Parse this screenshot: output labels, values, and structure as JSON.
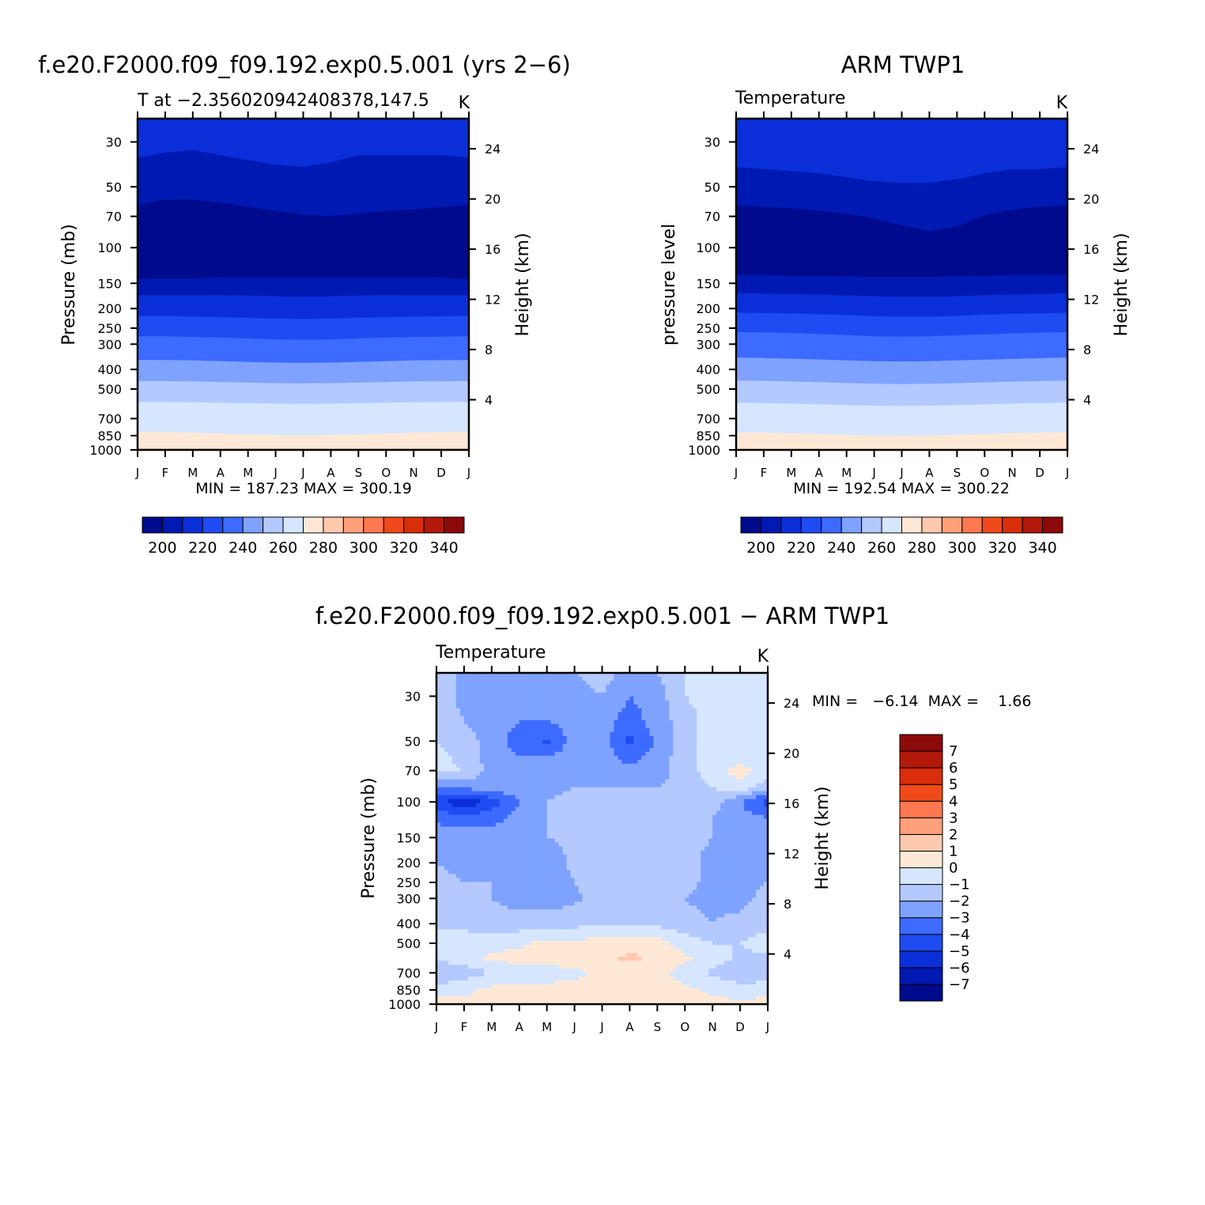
{
  "colors": {
    "abs_palette": [
      "#000a8c",
      "#0019b2",
      "#0a2fd9",
      "#1e4cf2",
      "#3d6bff",
      "#7fa2ff",
      "#b3c9ff",
      "#d6e6ff",
      "#ffe8d6",
      "#ffc9ae",
      "#ffa07a",
      "#ff7850",
      "#f04a1a",
      "#d92e0a",
      "#b2190a",
      "#8c0a0a"
    ],
    "diff_palette": [
      "#000a8c",
      "#0019b2",
      "#0a2fd9",
      "#1e4cf2",
      "#3d6bff",
      "#7fa2ff",
      "#b3c9ff",
      "#d6e6ff",
      "#ffe8d6",
      "#ffc9ae",
      "#ffa07a",
      "#ff7850",
      "#f04a1a",
      "#d92e0a",
      "#b2190a",
      "#8c0a0a"
    ]
  },
  "chart_data": [
    {
      "type": "heatmap",
      "title": "f.e20.F2000.f09_f09.192.exp0.5.001 (yrs 2−6)",
      "subtitle_left": "T at −2.356020942408378,147.5",
      "subtitle_right": "K",
      "xlabel": "",
      "ylabel": "Pressure (mb)",
      "ylabel_right": "Height (km)",
      "x_ticks": [
        "J",
        "F",
        "M",
        "A",
        "M",
        "J",
        "J",
        "A",
        "S",
        "O",
        "N",
        "D",
        "J"
      ],
      "y_ticks": [
        "30",
        "50",
        "70",
        "100",
        "150",
        "200",
        "250",
        "300",
        "400",
        "500",
        "700",
        "850",
        "1000"
      ],
      "y_tick_values": [
        30,
        50,
        70,
        100,
        150,
        200,
        250,
        300,
        400,
        500,
        700,
        850,
        1000
      ],
      "height_ticks": [
        "24",
        "20",
        "16",
        "12",
        "8",
        "4"
      ],
      "height_tick_values": [
        24,
        20,
        16,
        12,
        8,
        4
      ],
      "ylim": [
        1000,
        23
      ],
      "minmax_text": "MIN = 187.23  MAX = 300.19",
      "colorbar_labels": [
        "200",
        "220",
        "240",
        "260",
        "280",
        "300",
        "320",
        "340"
      ],
      "level_boundaries_p": [
        [
          36,
          34,
          33,
          35,
          37,
          39,
          40,
          38,
          35,
          35,
          35,
          35,
          36
        ],
        [
          62,
          58,
          58,
          60,
          63,
          66,
          69,
          70,
          68,
          66,
          65,
          63,
          62
        ],
        [
          143,
          142,
          142,
          141,
          141,
          141,
          141,
          141,
          141,
          141,
          141,
          141,
          143
        ],
        [
          172,
          172,
          172,
          172,
          173,
          174,
          175,
          174,
          173,
          172,
          172,
          172,
          172
        ],
        [
          218,
          218,
          220,
          221,
          223,
          225,
          226,
          225,
          223,
          221,
          220,
          219,
          218
        ],
        [
          275,
          275,
          277,
          279,
          282,
          285,
          286,
          285,
          282,
          279,
          277,
          276,
          275
        ],
        [
          360,
          360,
          362,
          365,
          368,
          371,
          372,
          371,
          368,
          365,
          362,
          361,
          360
        ],
        [
          458,
          458,
          460,
          463,
          466,
          469,
          470,
          469,
          466,
          463,
          460,
          459,
          458
        ],
        [
          580,
          581,
          583,
          586,
          589,
          592,
          593,
          592,
          589,
          586,
          583,
          581,
          580
        ],
        [
          815,
          818,
          825,
          833,
          841,
          847,
          850,
          847,
          841,
          833,
          825,
          818,
          815
        ],
        [
          985,
          985,
          985,
          985,
          985,
          985,
          985,
          985,
          985,
          985,
          985,
          985,
          985
        ]
      ],
      "band_colors_top_down": [
        "#0a2fd9",
        "#0019b2",
        "#000a8c",
        "#0019b2",
        "#0a2fd9",
        "#1e4cf2",
        "#3d6bff",
        "#7fa2ff",
        "#b3c9ff",
        "#d6e6ff",
        "#ffe8d6",
        "#ffc9ae",
        "#ffa07a"
      ]
    },
    {
      "type": "heatmap",
      "title": "ARM TWP1",
      "subtitle_left": "Temperature",
      "subtitle_right": "K",
      "ylabel": "pressure level",
      "ylabel_right": "Height (km)",
      "x_ticks": [
        "J",
        "F",
        "M",
        "A",
        "M",
        "J",
        "J",
        "A",
        "S",
        "O",
        "N",
        "D",
        "J"
      ],
      "y_ticks": [
        "30",
        "50",
        "70",
        "100",
        "150",
        "200",
        "250",
        "300",
        "400",
        "500",
        "700",
        "850",
        "1000"
      ],
      "y_tick_values": [
        30,
        50,
        70,
        100,
        150,
        200,
        250,
        300,
        400,
        500,
        700,
        850,
        1000
      ],
      "height_ticks": [
        "24",
        "20",
        "16",
        "12",
        "8",
        "4"
      ],
      "height_tick_values": [
        24,
        20,
        16,
        12,
        8,
        4
      ],
      "ylim": [
        1000,
        23
      ],
      "minmax_text": "MIN = 192.54  MAX = 300.22",
      "colorbar_labels": [
        "200",
        "220",
        "240",
        "260",
        "280",
        "300",
        "320",
        "340"
      ],
      "level_boundaries_p": [
        [
          40,
          41,
          42,
          43,
          45,
          47,
          48,
          48,
          46,
          43,
          41,
          41,
          40
        ],
        [
          62,
          63,
          64,
          66,
          68,
          72,
          78,
          83,
          79,
          69,
          65,
          63,
          62
        ],
        [
          136,
          137,
          138,
          138,
          139,
          140,
          140,
          140,
          139,
          138,
          137,
          137,
          136
        ],
        [
          168,
          169,
          170,
          171,
          173,
          174,
          175,
          175,
          174,
          172,
          171,
          170,
          168
        ],
        [
          210,
          211,
          212,
          214,
          216,
          219,
          220,
          220,
          218,
          215,
          213,
          212,
          210
        ],
        [
          262,
          263,
          265,
          268,
          271,
          275,
          276,
          275,
          272,
          269,
          266,
          264,
          262
        ],
        [
          350,
          352,
          355,
          358,
          362,
          365,
          366,
          365,
          362,
          359,
          356,
          353,
          350
        ],
        [
          455,
          457,
          460,
          464,
          468,
          472,
          474,
          472,
          469,
          465,
          461,
          458,
          455
        ],
        [
          585,
          588,
          592,
          597,
          602,
          606,
          608,
          606,
          602,
          597,
          592,
          588,
          585
        ],
        [
          820,
          824,
          830,
          838,
          846,
          852,
          855,
          852,
          846,
          838,
          830,
          824,
          820
        ]
      ],
      "band_colors_top_down": [
        "#0a2fd9",
        "#0019b2",
        "#000a8c",
        "#0019b2",
        "#0a2fd9",
        "#1e4cf2",
        "#3d6bff",
        "#7fa2ff",
        "#b3c9ff",
        "#d6e6ff",
        "#ffe8d6",
        "#ffc9ae"
      ]
    },
    {
      "type": "heatmap",
      "title": "f.e20.F2000.f09_f09.192.exp0.5.001 − ARM TWP1",
      "subtitle_left": "Temperature",
      "subtitle_right": "K",
      "ylabel": "Pressure (mb)",
      "ylabel_right": "Height (km)",
      "x_ticks": [
        "J",
        "F",
        "M",
        "A",
        "M",
        "J",
        "J",
        "A",
        "S",
        "O",
        "N",
        "D",
        "J"
      ],
      "y_ticks": [
        "30",
        "50",
        "70",
        "100",
        "150",
        "200",
        "250",
        "300",
        "400",
        "500",
        "700",
        "850",
        "1000"
      ],
      "y_tick_values": [
        30,
        50,
        70,
        100,
        150,
        200,
        250,
        300,
        400,
        500,
        700,
        850,
        1000
      ],
      "height_ticks": [
        "24",
        "20",
        "16",
        "12",
        "8",
        "4"
      ],
      "height_tick_values": [
        24,
        20,
        16,
        12,
        8,
        4
      ],
      "ylim": [
        1000,
        23
      ],
      "minmax_text": "MIN =   −6.14  MAX =    1.66",
      "colorbar_labels": [
        "7",
        "6",
        "5",
        "4",
        "3",
        "2",
        "1",
        "0",
        "−1",
        "−2",
        "−3",
        "−4",
        "−5",
        "−6",
        "−7"
      ],
      "field_months": [
        0,
        1,
        2,
        3,
        4,
        5,
        6,
        7,
        8,
        9,
        10,
        11,
        12
      ],
      "field_pressures": [
        23,
        30,
        40,
        50,
        60,
        70,
        85,
        100,
        120,
        150,
        200,
        250,
        300,
        400,
        500,
        600,
        700,
        850,
        1000
      ],
      "field_values": [
        [
          -1.0,
          -2.5,
          -2.5,
          -2.5,
          -2.0,
          -2.0,
          -1.5,
          -2.5,
          -2.0,
          -1.0,
          -0.5,
          -0.5,
          -1.0
        ],
        [
          -1.0,
          -2.5,
          -2.5,
          -2.5,
          -2.5,
          -2.5,
          -2.0,
          -3.0,
          -2.5,
          -1.0,
          -0.5,
          -0.5,
          -1.0
        ],
        [
          -1.0,
          -2.0,
          -2.5,
          -3.0,
          -3.0,
          -2.5,
          -2.5,
          -3.5,
          -2.5,
          -1.5,
          -0.5,
          -0.5,
          -0.8
        ],
        [
          -1.0,
          -1.5,
          -2.5,
          -3.5,
          -4.2,
          -2.5,
          -2.5,
          -4.3,
          -2.8,
          -1.5,
          -0.5,
          -0.5,
          -0.5
        ],
        [
          -0.8,
          -1.2,
          -2.5,
          -3.0,
          -3.0,
          -2.5,
          -2.5,
          -3.5,
          -2.5,
          -1.5,
          -0.5,
          -0.5,
          -0.5
        ],
        [
          -0.8,
          -1.0,
          -2.5,
          -2.5,
          -2.5,
          -2.5,
          -2.5,
          -2.5,
          -2.5,
          -1.5,
          -0.5,
          0.5,
          -0.5
        ],
        [
          -3.0,
          -2.8,
          -2.5,
          -2.5,
          -2.2,
          -2.0,
          -2.0,
          -2.0,
          -2.0,
          -1.5,
          -1.0,
          -0.5,
          -1.5
        ],
        [
          -4.5,
          -6.0,
          -4.5,
          -3.0,
          -2.0,
          -1.8,
          -1.8,
          -1.5,
          -1.5,
          -1.5,
          -1.5,
          -3.0,
          -4.5
        ],
        [
          -3.5,
          -3.5,
          -3.5,
          -2.5,
          -2.0,
          -1.8,
          -1.6,
          -1.6,
          -1.6,
          -1.5,
          -2.0,
          -2.5,
          -3.0
        ],
        [
          -2.0,
          -2.5,
          -2.5,
          -2.0,
          -2.0,
          -1.8,
          -1.6,
          -1.7,
          -1.6,
          -1.5,
          -2.0,
          -2.2,
          -2.0
        ],
        [
          -2.0,
          -2.5,
          -2.0,
          -2.0,
          -2.5,
          -1.8,
          -1.5,
          -1.5,
          -1.5,
          -1.5,
          -2.5,
          -2.5,
          -2.0
        ],
        [
          -1.5,
          -2.0,
          -2.0,
          -2.5,
          -2.5,
          -2.0,
          -1.5,
          -1.5,
          -1.5,
          -1.5,
          -2.5,
          -2.5,
          -2.0
        ],
        [
          -1.5,
          -1.5,
          -2.0,
          -2.5,
          -2.5,
          -2.2,
          -1.5,
          -1.5,
          -1.5,
          -2.0,
          -2.5,
          -2.5,
          -1.5
        ],
        [
          -1.2,
          -1.3,
          -1.5,
          -1.5,
          -1.5,
          -1.3,
          -1.2,
          -1.3,
          -1.3,
          -1.5,
          -2.0,
          -1.5,
          -1.3
        ],
        [
          -0.5,
          -0.5,
          -0.3,
          -0.2,
          0.3,
          0.2,
          0.5,
          0.8,
          0.5,
          -0.5,
          -1.0,
          -1.0,
          -0.5
        ],
        [
          -0.8,
          -0.6,
          0.2,
          0.4,
          0.5,
          0.5,
          0.7,
          1.2,
          0.8,
          0.2,
          -0.5,
          -1.2,
          -1.2
        ],
        [
          -2.0,
          -1.5,
          -1.0,
          -0.8,
          -0.5,
          -0.3,
          0.3,
          0.5,
          0.4,
          -0.5,
          -1.2,
          -1.8,
          -1.5
        ],
        [
          -0.5,
          -0.3,
          0.3,
          0.5,
          0.3,
          0.5,
          0.6,
          0.6,
          0.4,
          0.2,
          -0.2,
          -0.5,
          -0.5
        ],
        [
          0.5,
          0.3,
          0.5,
          0.6,
          0.5,
          0.6,
          0.8,
          0.7,
          0.5,
          0.5,
          0.3,
          0.2,
          0.5
        ]
      ],
      "levels": [
        -7,
        -6,
        -5,
        -4,
        -3,
        -2,
        -1,
        0,
        1,
        2,
        3,
        4,
        5,
        6,
        7
      ],
      "range": [
        -6.14,
        1.66
      ]
    }
  ]
}
